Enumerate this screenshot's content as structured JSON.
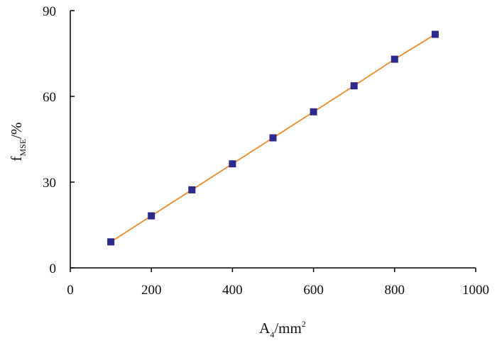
{
  "chart_data": {
    "type": "line",
    "x": [
      100,
      200,
      300,
      400,
      500,
      600,
      700,
      800,
      900
    ],
    "series": [
      {
        "values": [
          9.1,
          18.2,
          27.3,
          36.4,
          45.5,
          54.6,
          63.7,
          73.0,
          81.7
        ],
        "line_color": "#F0923A",
        "marker": "square",
        "marker_color": "#2B2A8C"
      }
    ],
    "xlim": [
      0,
      1000
    ],
    "ylim": [
      0,
      90
    ],
    "xticks": [
      "0",
      "200",
      "400",
      "600",
      "800",
      "1000"
    ],
    "yticks": [
      "0",
      "30",
      "60",
      "90"
    ],
    "xlabel": {
      "main": "A",
      "sub": "4",
      "rest": "/mm",
      "sup": "2"
    },
    "ylabel": {
      "main": "f",
      "sub": "MSE",
      "rest": "/%"
    },
    "grid": false,
    "legend": "none"
  }
}
